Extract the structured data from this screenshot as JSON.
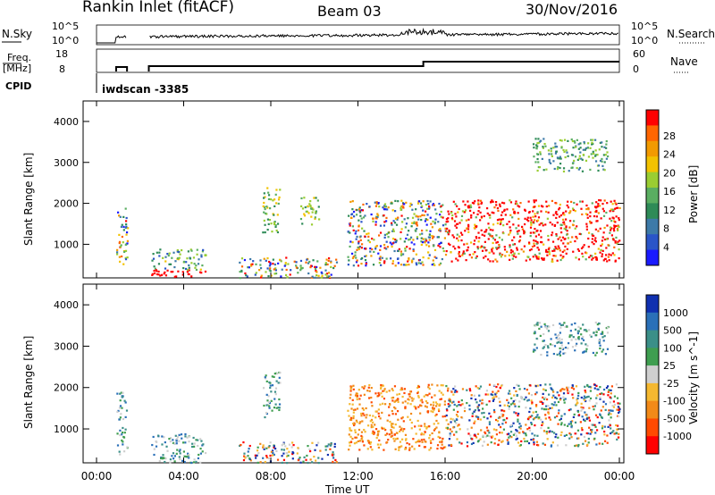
{
  "header": {
    "station": "Rankin Inlet (fitACF)",
    "beam": "Beam 03",
    "date": "30/Nov/2016"
  },
  "top_panels": {
    "noise": {
      "left_label": "N.Sky",
      "right_label": "N.Search",
      "left_ticks": [
        "10^5",
        "10^0"
      ],
      "right_ticks": [
        "10^5",
        "10^0"
      ]
    },
    "freq": {
      "left_label_1": "Freq.",
      "left_label_2": "[MHz]",
      "left_ticks": [
        "18",
        "8"
      ],
      "right_label": "Nave",
      "right_ticks": [
        "60",
        "0"
      ]
    },
    "cpid": {
      "label": "CPID",
      "program": "iwdscan -3385"
    }
  },
  "x_axis": {
    "label": "Time UT",
    "ticks": [
      "00:00",
      "04:00",
      "08:00",
      "12:00",
      "16:00",
      "20:00",
      "00:00"
    ]
  },
  "chart_data": [
    {
      "type": "heatmap",
      "title": "",
      "xlabel": "",
      "ylabel": "Slant Range [km]",
      "yticks": [
        "1000",
        "2000",
        "3000",
        "4000"
      ],
      "xlim_hours": [
        0,
        24
      ],
      "ylim_km": [
        180,
        4500
      ],
      "colorbar": {
        "label": "Power [dB]",
        "ticks": [
          "4",
          "8",
          "12",
          "16",
          "20",
          "24",
          "28"
        ],
        "range": [
          0,
          30
        ],
        "colors": [
          "#1a1aff",
          "#2a55c8",
          "#3d7aa8",
          "#2e8b57",
          "#5aae61",
          "#9acd32",
          "#f2c200",
          "#f29a00",
          "#ff6600",
          "#ff0000"
        ]
      },
      "regions": [
        {
          "t": [
            0.9,
            1.4
          ],
          "r": [
            400,
            1900
          ],
          "level": "mixed"
        },
        {
          "t": [
            2.5,
            5.0
          ],
          "r": [
            200,
            900
          ],
          "level": "low-high"
        },
        {
          "t": [
            6.5,
            11.0
          ],
          "r": [
            200,
            700
          ],
          "level": "mixed"
        },
        {
          "t": [
            7.6,
            8.4
          ],
          "r": [
            1300,
            2400
          ],
          "level": "mid"
        },
        {
          "t": [
            9.3,
            10.2
          ],
          "r": [
            1500,
            2200
          ],
          "level": "mid"
        },
        {
          "t": [
            11.5,
            16.0
          ],
          "r": [
            500,
            2100
          ],
          "level": "mixed"
        },
        {
          "t": [
            16.0,
            24.0
          ],
          "r": [
            600,
            2100
          ],
          "level": "high"
        },
        {
          "t": [
            20.0,
            23.5
          ],
          "r": [
            2800,
            3600
          ],
          "level": "low"
        }
      ]
    },
    {
      "type": "heatmap",
      "title": "",
      "xlabel": "Time UT",
      "ylabel": "Slant Range [km]",
      "yticks": [
        "1000",
        "2000",
        "3000",
        "4000"
      ],
      "xlim_hours": [
        0,
        24
      ],
      "ylim_km": [
        180,
        4500
      ],
      "colorbar": {
        "label": "Velocity [m s^-1]",
        "ticks": [
          "1000",
          "500",
          "100",
          "25",
          "-25",
          "-100",
          "-500",
          "-1000"
        ],
        "range": [
          -1000,
          1000
        ],
        "colors": [
          "#1030b0",
          "#2a70b8",
          "#3b8f88",
          "#3f9e50",
          "#cfcfcf",
          "#f5b830",
          "#f28a18",
          "#ff4a00",
          "#ff0000"
        ]
      },
      "regions": [
        {
          "t": [
            0.9,
            1.4
          ],
          "r": [
            400,
            1900
          ],
          "level": "positive"
        },
        {
          "t": [
            2.5,
            5.0
          ],
          "r": [
            200,
            900
          ],
          "level": "positive"
        },
        {
          "t": [
            6.5,
            11.0
          ],
          "r": [
            200,
            700
          ],
          "level": "mixed"
        },
        {
          "t": [
            7.6,
            8.4
          ],
          "r": [
            1300,
            2400
          ],
          "level": "positive"
        },
        {
          "t": [
            11.5,
            16.0
          ],
          "r": [
            500,
            2100
          ],
          "level": "negative"
        },
        {
          "t": [
            16.0,
            24.0
          ],
          "r": [
            600,
            2100
          ],
          "level": "mixed"
        },
        {
          "t": [
            20.0,
            23.5
          ],
          "r": [
            2800,
            3600
          ],
          "level": "positive"
        }
      ]
    }
  ]
}
